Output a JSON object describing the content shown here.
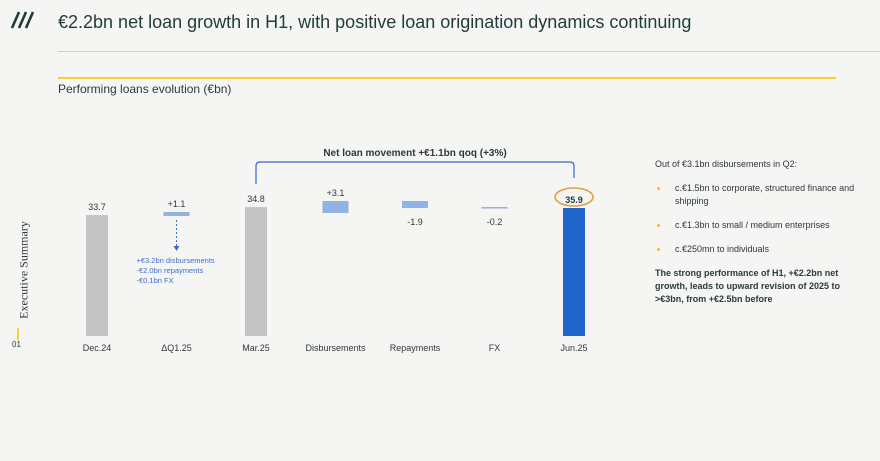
{
  "title": "€2.2bn net loan growth in H1, with positive loan origination dynamics continuing",
  "subtitle": "Performing loans evolution (€bn)",
  "side_label": "Executive Summary",
  "page_number": "01",
  "colors": {
    "total_bar": "#c4c4c4",
    "delta_bar": "#8fb3e3",
    "final_bar": "#1f66cc",
    "highlight": "#e0a040",
    "accent": "#f0d23c",
    "bracket": "#2d6acb"
  },
  "chart_data": {
    "type": "bar",
    "subtype": "waterfall",
    "title": "Performing loans evolution (€bn)",
    "categories": [
      "Dec.24",
      "ΔQ1.25",
      "Mar.25",
      "Disbursements",
      "Repayments",
      "FX",
      "Jun.25"
    ],
    "values": [
      33.7,
      1.1,
      34.8,
      3.1,
      -1.9,
      -0.2,
      35.9
    ],
    "labels": [
      "33.7",
      "+1.1",
      "34.8",
      "+3.1",
      "-1.9",
      "-0.2",
      "35.9"
    ],
    "kinds": [
      "total",
      "delta",
      "total",
      "delta",
      "delta",
      "delta",
      "final"
    ],
    "highlighted_index": 6,
    "bracket_label": "Net loan movement +€1.1bn qoq (+3%)",
    "q1_breakdown": [
      "+€3.2bn disbursements",
      "-€2.0bn repayments",
      "-€0.1bn FX"
    ]
  },
  "notes": {
    "intro": "Out of €3.1bn disbursements in Q2:",
    "items": [
      "c.€1.5bn to corporate, structured finance and shipping",
      "c.€1.3bn to small / medium enterprises",
      "c.€250mn to individuals"
    ],
    "conclusion": "The strong performance of H1, +€2.2bn net growth, leads to upward revision of 2025 to >€3bn, from +€2.5bn before"
  }
}
